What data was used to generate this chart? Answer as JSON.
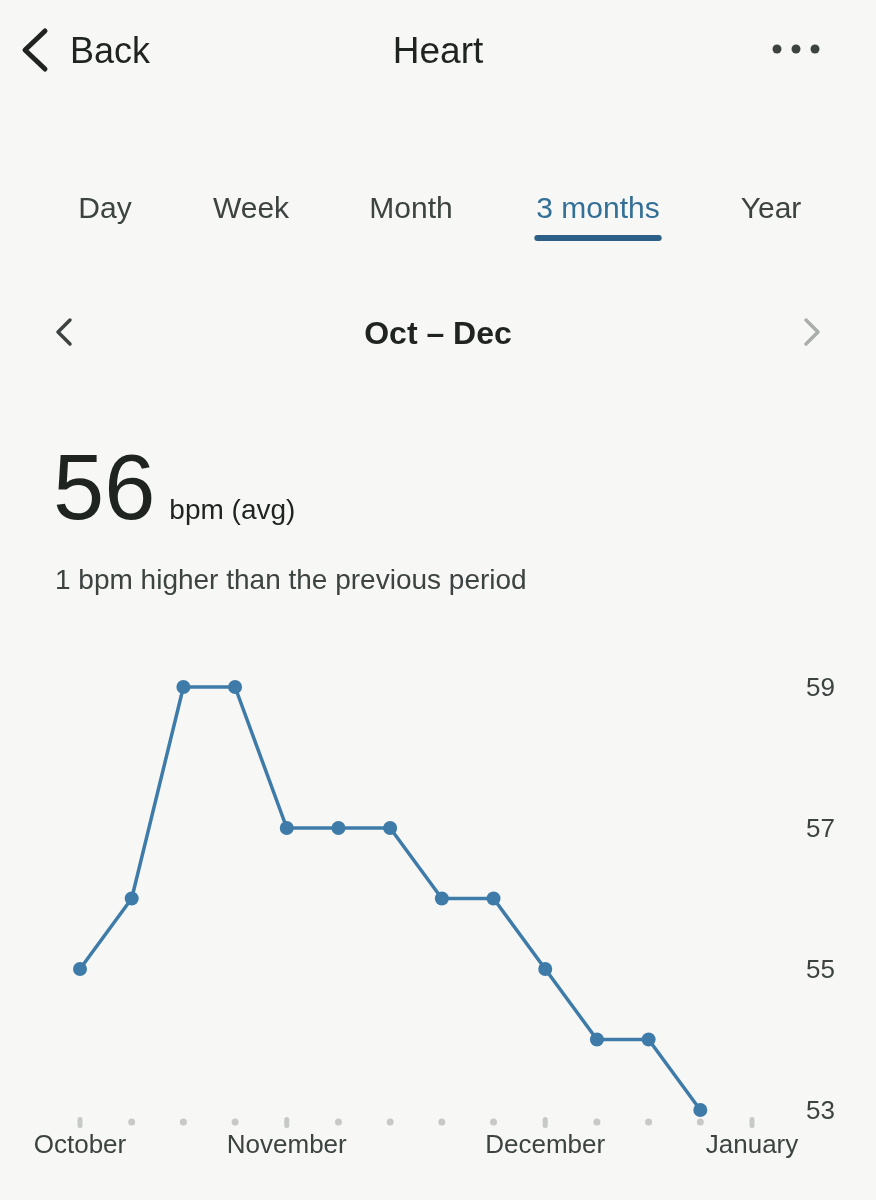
{
  "chart_data": {
    "type": "line",
    "title": "Heart",
    "subtitle": "Oct – Dec",
    "annotations": [
      "Back",
      "Day",
      "Week",
      "Month",
      "3 months",
      "Year",
      "56",
      "bpm (avg)",
      "1 bpm higher than the previous period"
    ],
    "categories": [
      "October",
      null,
      null,
      null,
      "November",
      null,
      null,
      null,
      null,
      "December",
      null,
      null,
      null,
      "January"
    ],
    "values": [
      55,
      56,
      59,
      59,
      57,
      57,
      57,
      56,
      56,
      55,
      54,
      54,
      53,
      null
    ],
    "color": "#3f7ba8",
    "ylim": [
      53,
      59
    ],
    "yticks": [
      53,
      55,
      57,
      59
    ],
    "marker": "circle",
    "line_style": "solid"
  }
}
